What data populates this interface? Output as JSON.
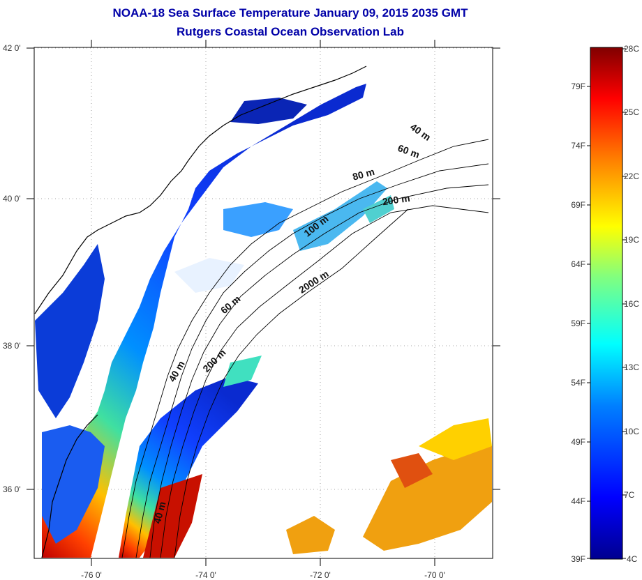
{
  "title_line1": "NOAA-18 Sea Surface Temperature January 09, 2015 2035 GMT",
  "title_line2": "Rutgers Coastal Ocean Observation Lab",
  "map": {
    "lon_ticks": [
      "-76 0'",
      "-74 0'",
      "-72 0'",
      "-70 0'"
    ],
    "lat_ticks": [
      "42 0'",
      "40 0'",
      "38 0'",
      "36 0'"
    ],
    "depth_labels": [
      "40 m",
      "60 m",
      "80 m",
      "200 m",
      "100 m",
      "2000 m",
      "60 m",
      "200 m",
      "40 m",
      "40 m"
    ]
  },
  "colorbar": {
    "celsius": [
      "28C",
      "25C",
      "22C",
      "19C",
      "16C",
      "13C",
      "10C",
      "7C",
      "4C"
    ],
    "fahrenheit": [
      "79F",
      "74F",
      "69F",
      "64F",
      "59F",
      "54F",
      "49F",
      "44F",
      "39F"
    ],
    "colors": [
      "#00008f",
      "#0000ff",
      "#0080ff",
      "#00ffff",
      "#80ff80",
      "#ffff00",
      "#ff8000",
      "#ff0000",
      "#800000"
    ]
  },
  "palette": {
    "land_outline": "#000000",
    "cold_water": "#1f3fe0",
    "warm_water": "#e03010"
  }
}
